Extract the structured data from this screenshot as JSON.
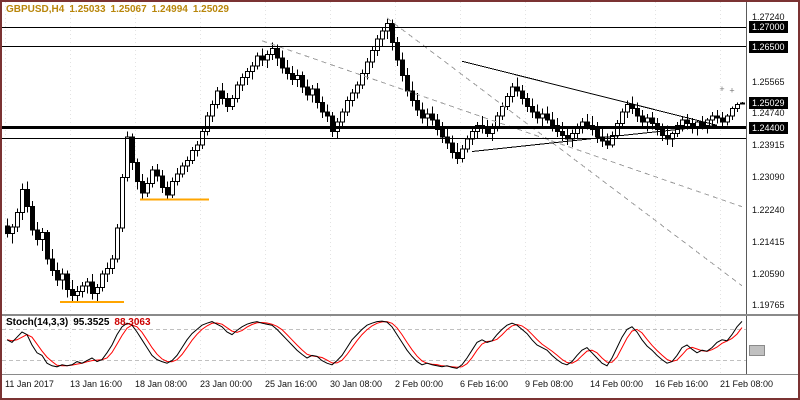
{
  "window": {
    "border_color": "#7b3333",
    "background": "#ffffff"
  },
  "header": {
    "symbol_period": "GBPUSD,H4",
    "open": "1.25033",
    "high": "1.25067",
    "low": "1.24994",
    "close": "1.25029",
    "color": "#b8860b"
  },
  "colors": {
    "bull": "#ffffff",
    "bear": "#000000",
    "outline": "#000000",
    "grid": "#e3e3e3",
    "badge_bg": "#000000",
    "badge_text": "#ffffff",
    "support_segment": "#ffa500",
    "dashed_trendline": "#9e9e9e"
  },
  "chart_data": {
    "type": "candlestick",
    "title": "GBPUSD,H4",
    "symbol": "GBPUSD",
    "timeframe": "H4",
    "ohlc_display": {
      "open": "1.25033",
      "high": "1.25067",
      "low": "1.24994",
      "close": "1.25029"
    },
    "price_range": [
      1.1962,
      1.275
    ],
    "y_axis_labels": [
      "1.27240",
      "1.26415",
      "1.25565",
      "1.24740",
      "1.23915",
      "1.23090",
      "1.22240",
      "1.21415",
      "1.20590",
      "1.19765"
    ],
    "x_axis_labels": [
      "11 Jan 2017",
      "13 Jan 16:00",
      "18 Jan 08:00",
      "23 Jan 00:00",
      "25 Jan 16:00",
      "30 Jan 08:00",
      "2 Feb 00:00",
      "6 Feb 16:00",
      "9 Feb 08:00",
      "14 Feb 00:00",
      "16 Feb 16:00",
      "21 Feb 08:00"
    ],
    "x_tick_bars": [
      0,
      13,
      26,
      39,
      52,
      65,
      78,
      91,
      104,
      117,
      130,
      143
    ],
    "grid": "vertical-dotted",
    "legend_position": "none",
    "current_price": {
      "value": 1.25029,
      "label": "1.25029"
    },
    "horizontal_levels": [
      {
        "price": 1.27,
        "label": "1.27000",
        "width": 1,
        "color": "#000000"
      },
      {
        "price": 1.265,
        "label": "1.26500",
        "width": 1,
        "color": "#000000"
      },
      {
        "price": 1.244,
        "label": "1.24400",
        "width": 3,
        "color": "#000000"
      },
      {
        "price": 1.2412,
        "label": null,
        "width": 1,
        "color": "#000000"
      }
    ],
    "support_segments": [
      {
        "from_bar": 11,
        "to_bar": 23,
        "price": 1.1988,
        "color": "#ffa500"
      },
      {
        "from_bar": 27,
        "to_bar": 40,
        "price": 1.2253,
        "color": "#ffa500"
      }
    ],
    "trendlines": [
      {
        "from_bar": 51,
        "p1": 1.2665,
        "to_bar": 147,
        "p2": 1.2235,
        "style": "dashed",
        "color": "#9e9e9e"
      },
      {
        "from_bar": 76,
        "p1": 1.2724,
        "to_bar": 147,
        "p2": 1.203,
        "style": "dashed",
        "color": "#9e9e9e"
      },
      {
        "from_bar": 91,
        "p1": 1.2612,
        "to_bar": 142,
        "p2": 1.2446,
        "style": "solid",
        "color": "#000000"
      },
      {
        "from_bar": 93,
        "p1": 1.2378,
        "to_bar": 142,
        "p2": 1.2446,
        "style": "solid",
        "color": "#000000"
      }
    ],
    "markers": [
      {
        "bar": 143,
        "price": 1.2532,
        "glyph": "+"
      },
      {
        "bar": 145,
        "price": 1.2528,
        "glyph": "+"
      }
    ],
    "candles": [
      [
        1.2185,
        1.2205,
        1.2155,
        1.2165
      ],
      [
        1.2165,
        1.219,
        1.214,
        1.2182
      ],
      [
        1.2182,
        1.223,
        1.217,
        1.222
      ],
      [
        1.222,
        1.2295,
        1.22,
        1.228
      ],
      [
        1.228,
        1.23,
        1.222,
        1.2235
      ],
      [
        1.2235,
        1.225,
        1.216,
        1.2175
      ],
      [
        1.2175,
        1.2195,
        1.2135,
        1.215
      ],
      [
        1.215,
        1.218,
        1.212,
        1.2168
      ],
      [
        1.2168,
        1.2175,
        1.2085,
        1.21
      ],
      [
        1.21,
        1.2125,
        1.2055,
        1.207
      ],
      [
        1.207,
        1.209,
        1.203,
        1.2045
      ],
      [
        1.2045,
        1.2075,
        1.202,
        1.206
      ],
      [
        1.206,
        1.207,
        1.2,
        1.202
      ],
      [
        1.202,
        1.2045,
        1.199,
        1.2005
      ],
      [
        1.2005,
        1.203,
        1.1986,
        1.2015
      ],
      [
        1.2015,
        1.204,
        1.2,
        1.203
      ],
      [
        1.203,
        1.205,
        1.201,
        1.204
      ],
      [
        1.204,
        1.206,
        1.1995,
        1.201
      ],
      [
        1.201,
        1.2035,
        1.1988,
        1.2025
      ],
      [
        1.2025,
        1.207,
        1.2015,
        1.206
      ],
      [
        1.206,
        1.209,
        1.204,
        1.2075
      ],
      [
        1.2075,
        1.211,
        1.206,
        1.21
      ],
      [
        1.21,
        1.219,
        1.209,
        1.218
      ],
      [
        1.218,
        1.232,
        1.217,
        1.231
      ],
      [
        1.231,
        1.243,
        1.23,
        1.2415
      ],
      [
        1.2415,
        1.2425,
        1.233,
        1.235
      ],
      [
        1.235,
        1.236,
        1.228,
        1.23
      ],
      [
        1.23,
        1.232,
        1.2255,
        1.227
      ],
      [
        1.227,
        1.231,
        1.226,
        1.2295
      ],
      [
        1.2295,
        1.234,
        1.2285,
        1.233
      ],
      [
        1.233,
        1.2345,
        1.23,
        1.2315
      ],
      [
        1.2315,
        1.233,
        1.227,
        1.2285
      ],
      [
        1.2285,
        1.23,
        1.2254,
        1.2265
      ],
      [
        1.2265,
        1.231,
        1.2258,
        1.23
      ],
      [
        1.23,
        1.2335,
        1.229,
        1.232
      ],
      [
        1.232,
        1.235,
        1.231,
        1.234
      ],
      [
        1.234,
        1.2365,
        1.2325,
        1.2355
      ],
      [
        1.2355,
        1.239,
        1.2345,
        1.238
      ],
      [
        1.238,
        1.2405,
        1.2365,
        1.2395
      ],
      [
        1.2395,
        1.244,
        1.2385,
        1.243
      ],
      [
        1.243,
        1.248,
        1.242,
        1.247
      ],
      [
        1.247,
        1.251,
        1.2455,
        1.25
      ],
      [
        1.25,
        1.2545,
        1.249,
        1.2535
      ],
      [
        1.2535,
        1.2555,
        1.25,
        1.2515
      ],
      [
        1.2515,
        1.253,
        1.248,
        1.2495
      ],
      [
        1.2495,
        1.2525,
        1.2485,
        1.2515
      ],
      [
        1.2515,
        1.256,
        1.2505,
        1.255
      ],
      [
        1.255,
        1.258,
        1.2535,
        1.257
      ],
      [
        1.257,
        1.2595,
        1.255,
        1.2585
      ],
      [
        1.2585,
        1.261,
        1.2565,
        1.26
      ],
      [
        1.26,
        1.2635,
        1.259,
        1.2625
      ],
      [
        1.2625,
        1.2645,
        1.26,
        1.2615
      ],
      [
        1.2615,
        1.264,
        1.2595,
        1.263
      ],
      [
        1.263,
        1.266,
        1.2615,
        1.2645
      ],
      [
        1.2645,
        1.2655,
        1.26,
        1.262
      ],
      [
        1.262,
        1.264,
        1.258,
        1.2595
      ],
      [
        1.2595,
        1.2615,
        1.2565,
        1.258
      ],
      [
        1.258,
        1.26,
        1.255,
        1.2565
      ],
      [
        1.2565,
        1.259,
        1.2545,
        1.2575
      ],
      [
        1.2575,
        1.2585,
        1.253,
        1.2545
      ],
      [
        1.2545,
        1.2565,
        1.251,
        1.2525
      ],
      [
        1.2525,
        1.255,
        1.2505,
        1.254
      ],
      [
        1.254,
        1.2555,
        1.249,
        1.2505
      ],
      [
        1.2505,
        1.252,
        1.2465,
        1.248
      ],
      [
        1.248,
        1.25,
        1.2455,
        1.247
      ],
      [
        1.247,
        1.248,
        1.2415,
        1.243
      ],
      [
        1.243,
        1.2465,
        1.2412,
        1.2455
      ],
      [
        1.2455,
        1.249,
        1.244,
        1.248
      ],
      [
        1.248,
        1.252,
        1.247,
        1.251
      ],
      [
        1.251,
        1.254,
        1.2495,
        1.253
      ],
      [
        1.253,
        1.256,
        1.2515,
        1.255
      ],
      [
        1.255,
        1.259,
        1.254,
        1.258
      ],
      [
        1.258,
        1.262,
        1.2565,
        1.261
      ],
      [
        1.261,
        1.265,
        1.2595,
        1.264
      ],
      [
        1.264,
        1.268,
        1.2625,
        1.267
      ],
      [
        1.267,
        1.27,
        1.265,
        1.269
      ],
      [
        1.269,
        1.2724,
        1.267,
        1.271
      ],
      [
        1.271,
        1.272,
        1.264,
        1.266
      ],
      [
        1.266,
        1.2675,
        1.26,
        1.2615
      ],
      [
        1.2615,
        1.2635,
        1.256,
        1.2575
      ],
      [
        1.2575,
        1.2595,
        1.252,
        1.2535
      ],
      [
        1.2535,
        1.256,
        1.2495,
        1.251
      ],
      [
        1.251,
        1.253,
        1.247,
        1.2485
      ],
      [
        1.2485,
        1.2505,
        1.245,
        1.2465
      ],
      [
        1.2465,
        1.249,
        1.244,
        1.2475
      ],
      [
        1.2475,
        1.2495,
        1.2445,
        1.246
      ],
      [
        1.246,
        1.2475,
        1.242,
        1.2435
      ],
      [
        1.2435,
        1.2455,
        1.24,
        1.2415
      ],
      [
        1.2415,
        1.244,
        1.2385,
        1.24
      ],
      [
        1.24,
        1.242,
        1.236,
        1.2375
      ],
      [
        1.2375,
        1.24,
        1.2345,
        1.236
      ],
      [
        1.236,
        1.2395,
        1.235,
        1.2385
      ],
      [
        1.2385,
        1.242,
        1.2375,
        1.241
      ],
      [
        1.241,
        1.244,
        1.2395,
        1.243
      ],
      [
        1.243,
        1.2455,
        1.241,
        1.2445
      ],
      [
        1.2445,
        1.247,
        1.2425,
        1.244
      ],
      [
        1.244,
        1.246,
        1.2415,
        1.2425
      ],
      [
        1.2425,
        1.245,
        1.2405,
        1.244
      ],
      [
        1.244,
        1.248,
        1.243,
        1.247
      ],
      [
        1.247,
        1.2505,
        1.246,
        1.2495
      ],
      [
        1.2495,
        1.253,
        1.2485,
        1.252
      ],
      [
        1.252,
        1.2555,
        1.2505,
        1.2545
      ],
      [
        1.2545,
        1.257,
        1.252,
        1.2535
      ],
      [
        1.2535,
        1.255,
        1.25,
        1.2515
      ],
      [
        1.2515,
        1.253,
        1.248,
        1.2495
      ],
      [
        1.2495,
        1.2515,
        1.2465,
        1.248
      ],
      [
        1.248,
        1.25,
        1.245,
        1.2465
      ],
      [
        1.2465,
        1.249,
        1.244,
        1.2475
      ],
      [
        1.2475,
        1.2495,
        1.245,
        1.246
      ],
      [
        1.246,
        1.248,
        1.243,
        1.2445
      ],
      [
        1.2445,
        1.2465,
        1.2415,
        1.243
      ],
      [
        1.243,
        1.2455,
        1.2405,
        1.242
      ],
      [
        1.242,
        1.244,
        1.2395,
        1.241
      ],
      [
        1.241,
        1.2435,
        1.239,
        1.2425
      ],
      [
        1.2425,
        1.245,
        1.241,
        1.244
      ],
      [
        1.244,
        1.2465,
        1.2425,
        1.2455
      ],
      [
        1.2455,
        1.2475,
        1.2435,
        1.2445
      ],
      [
        1.2445,
        1.247,
        1.242,
        1.2435
      ],
      [
        1.2435,
        1.2455,
        1.24,
        1.2415
      ],
      [
        1.2415,
        1.244,
        1.239,
        1.2405
      ],
      [
        1.2405,
        1.2425,
        1.2385,
        1.2395
      ],
      [
        1.2395,
        1.243,
        1.2388,
        1.242
      ],
      [
        1.242,
        1.246,
        1.241,
        1.245
      ],
      [
        1.245,
        1.249,
        1.244,
        1.248
      ],
      [
        1.248,
        1.251,
        1.2465,
        1.25
      ],
      [
        1.25,
        1.252,
        1.2475,
        1.249
      ],
      [
        1.249,
        1.2505,
        1.2455,
        1.247
      ],
      [
        1.247,
        1.2485,
        1.244,
        1.2455
      ],
      [
        1.2455,
        1.2475,
        1.243,
        1.2465
      ],
      [
        1.2465,
        1.248,
        1.2435,
        1.245
      ],
      [
        1.245,
        1.2465,
        1.242,
        1.2435
      ],
      [
        1.2435,
        1.245,
        1.2405,
        1.242
      ],
      [
        1.242,
        1.2445,
        1.2395,
        1.241
      ],
      [
        1.241,
        1.243,
        1.239,
        1.2425
      ],
      [
        1.2425,
        1.2455,
        1.2415,
        1.2445
      ],
      [
        1.2445,
        1.247,
        1.243,
        1.246
      ],
      [
        1.246,
        1.2475,
        1.2435,
        1.245
      ],
      [
        1.245,
        1.2465,
        1.2425,
        1.244
      ],
      [
        1.244,
        1.246,
        1.242,
        1.2455
      ],
      [
        1.2455,
        1.247,
        1.2435,
        1.2445
      ],
      [
        1.2445,
        1.2465,
        1.2425,
        1.246
      ],
      [
        1.246,
        1.248,
        1.2445,
        1.247
      ],
      [
        1.247,
        1.2485,
        1.245,
        1.2465
      ],
      [
        1.2465,
        1.248,
        1.244,
        1.2455
      ],
      [
        1.2455,
        1.2475,
        1.2445,
        1.247
      ],
      [
        1.247,
        1.2495,
        1.246,
        1.249
      ],
      [
        1.249,
        1.2505,
        1.248,
        1.25
      ],
      [
        1.25033,
        1.25067,
        1.24994,
        1.25029
      ]
    ]
  },
  "stoch": {
    "label": "Stoch(14,3,3)",
    "k_value": "95.3525",
    "d_value": "88.3063",
    "range": [
      0,
      100
    ],
    "levels": [
      20,
      80
    ],
    "k_color": "#000000",
    "d_color": "#ff0000",
    "level_color": "#c0c0c0",
    "k": [
      60,
      55,
      65,
      75,
      70,
      50,
      35,
      30,
      15,
      10,
      8,
      12,
      10,
      12,
      18,
      15,
      20,
      25,
      18,
      22,
      35,
      50,
      70,
      85,
      92,
      88,
      75,
      60,
      45,
      30,
      22,
      18,
      15,
      20,
      30,
      45,
      60,
      72,
      80,
      88,
      92,
      95,
      90,
      85,
      75,
      70,
      78,
      85,
      90,
      93,
      95,
      92,
      90,
      88,
      80,
      70,
      60,
      50,
      40,
      32,
      25,
      30,
      28,
      20,
      15,
      12,
      20,
      30,
      45,
      60,
      70,
      80,
      88,
      92,
      95,
      96,
      94,
      85,
      70,
      55,
      40,
      28,
      18,
      12,
      15,
      12,
      10,
      8,
      10,
      7,
      5,
      12,
      25,
      40,
      55,
      60,
      55,
      58,
      70,
      80,
      88,
      92,
      88,
      80,
      72,
      60,
      50,
      45,
      40,
      30,
      22,
      15,
      12,
      18,
      30,
      40,
      45,
      35,
      25,
      15,
      10,
      25,
      45,
      65,
      80,
      85,
      75,
      60,
      48,
      40,
      30,
      22,
      15,
      18,
      30,
      45,
      50,
      42,
      35,
      40,
      38,
      45,
      55,
      60,
      58,
      70,
      85,
      95.35
    ]
  }
}
